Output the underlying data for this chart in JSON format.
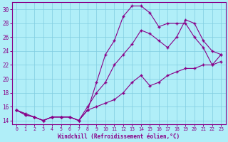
{
  "xlabel": "Windchill (Refroidissement éolien,°C)",
  "bg_color": "#b0eef8",
  "grid_color": "#80cce0",
  "line_color": "#880088",
  "xlim": [
    -0.5,
    23.5
  ],
  "ylim": [
    13.5,
    31.0
  ],
  "yticks": [
    14,
    16,
    18,
    20,
    22,
    24,
    26,
    28,
    30
  ],
  "xticks": [
    0,
    1,
    2,
    3,
    4,
    5,
    6,
    7,
    8,
    9,
    10,
    11,
    12,
    13,
    14,
    15,
    16,
    17,
    18,
    19,
    20,
    21,
    22,
    23
  ],
  "curve1_x": [
    0,
    1,
    2,
    3,
    4,
    5,
    6,
    7,
    8,
    9,
    10,
    11,
    12,
    13,
    14,
    15,
    16,
    17,
    18,
    19,
    20,
    21,
    22,
    23
  ],
  "curve1_y": [
    15.5,
    15.0,
    14.5,
    14.0,
    14.5,
    14.5,
    14.5,
    14.0,
    15.5,
    19.5,
    23.5,
    25.5,
    29.0,
    30.5,
    30.5,
    29.5,
    27.5,
    28.0,
    28.0,
    28.0,
    26.0,
    24.5,
    22.0,
    23.5
  ],
  "curve2_x": [
    0,
    1,
    2,
    3,
    4,
    5,
    6,
    7,
    8,
    9,
    10,
    11,
    12,
    13,
    14,
    15,
    16,
    17,
    18,
    19,
    20,
    21,
    22,
    23
  ],
  "curve2_y": [
    15.5,
    14.8,
    14.5,
    14.0,
    14.5,
    14.5,
    14.5,
    14.0,
    16.0,
    18.0,
    19.5,
    22.0,
    23.5,
    25.0,
    27.0,
    26.5,
    25.5,
    24.5,
    26.0,
    28.5,
    28.0,
    25.5,
    24.0,
    23.5
  ],
  "curve3_x": [
    0,
    1,
    2,
    3,
    4,
    5,
    6,
    7,
    8,
    9,
    10,
    11,
    12,
    13,
    14,
    15,
    16,
    17,
    18,
    19,
    20,
    21,
    22,
    23
  ],
  "curve3_y": [
    15.5,
    14.8,
    14.5,
    14.0,
    14.5,
    14.5,
    14.5,
    14.0,
    15.5,
    16.0,
    16.5,
    17.0,
    18.0,
    19.5,
    20.5,
    19.0,
    19.5,
    20.5,
    21.0,
    21.5,
    21.5,
    22.0,
    22.0,
    22.5
  ]
}
